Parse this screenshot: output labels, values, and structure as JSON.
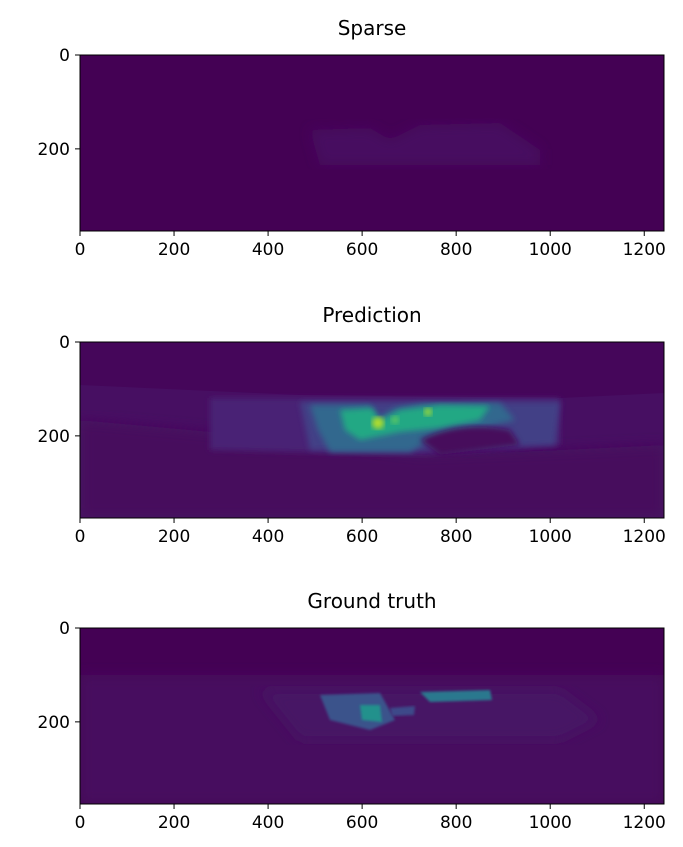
{
  "chart_data": [
    {
      "type": "image",
      "title": "Sparse",
      "xlim": [
        0,
        1242
      ],
      "ylim": [
        375,
        0
      ],
      "xticks": [
        0,
        200,
        400,
        600,
        800,
        1000,
        1200
      ],
      "yticks": [
        0,
        200
      ]
    },
    {
      "type": "image",
      "title": "Prediction",
      "xlim": [
        0,
        1242
      ],
      "ylim": [
        375,
        0
      ],
      "xticks": [
        0,
        200,
        400,
        600,
        800,
        1000,
        1200
      ],
      "yticks": [
        0,
        200
      ]
    },
    {
      "type": "image",
      "title": "Ground truth",
      "xlim": [
        0,
        1242
      ],
      "ylim": [
        375,
        0
      ],
      "xticks": [
        0,
        200,
        400,
        600,
        800,
        1000,
        1200
      ],
      "yticks": [
        0,
        200
      ]
    }
  ]
}
